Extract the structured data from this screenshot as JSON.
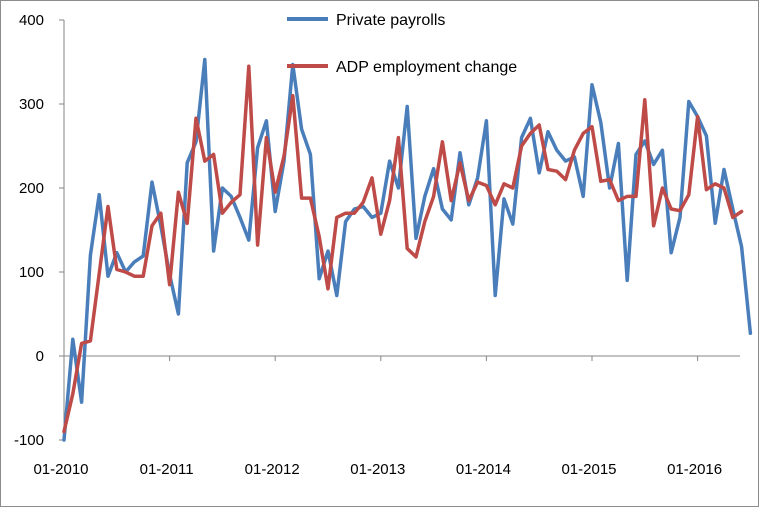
{
  "chart_data": {
    "type": "line",
    "title": "",
    "xlabel": "",
    "ylabel": "",
    "ylim": [
      -100,
      400
    ],
    "yticks": [
      -100,
      0,
      100,
      200,
      300,
      400
    ],
    "xticks": [
      "01-2010",
      "01-2011",
      "01-2012",
      "01-2013",
      "01-2014",
      "01-2015",
      "01-2016"
    ],
    "start_month": "01-2010",
    "grid": false,
    "legend_position": "top",
    "series": [
      {
        "name": "Private payrolls",
        "color": "#4a7ebb",
        "values": [
          -100,
          20,
          -55,
          120,
          192,
          95,
          123,
          100,
          112,
          119,
          207,
          155,
          97,
          50,
          230,
          255,
          353,
          125,
          200,
          190,
          165,
          138,
          248,
          280,
          172,
          232,
          347,
          270,
          240,
          92,
          125,
          72,
          160,
          175,
          178,
          165,
          170,
          232,
          200,
          297,
          140,
          190,
          223,
          175,
          162,
          242,
          180,
          212,
          280,
          72,
          187,
          157,
          260,
          283,
          218,
          267,
          245,
          232,
          237,
          190,
          323,
          278,
          200,
          253,
          90,
          240,
          256,
          228,
          245,
          123,
          165,
          303,
          285,
          262,
          158,
          222,
          175,
          130,
          27
        ]
      },
      {
        "name": "ADP employment change",
        "color": "#be4b48",
        "values": [
          -90,
          -45,
          15,
          18,
          98,
          178,
          103,
          100,
          95,
          95,
          155,
          170,
          85,
          195,
          158,
          283,
          232,
          240,
          170,
          183,
          192,
          345,
          132,
          260,
          195,
          238,
          310,
          188,
          188,
          142,
          80,
          165,
          170,
          170,
          183,
          212,
          145,
          185,
          260,
          128,
          118,
          160,
          190,
          255,
          185,
          230,
          185,
          207,
          203,
          180,
          205,
          200,
          250,
          265,
          275,
          222,
          220,
          210,
          245,
          265,
          273,
          208,
          210,
          185,
          190,
          190,
          305,
          155,
          200,
          175,
          173,
          192,
          285,
          198,
          205,
          200,
          165,
          172
        ]
      }
    ]
  }
}
